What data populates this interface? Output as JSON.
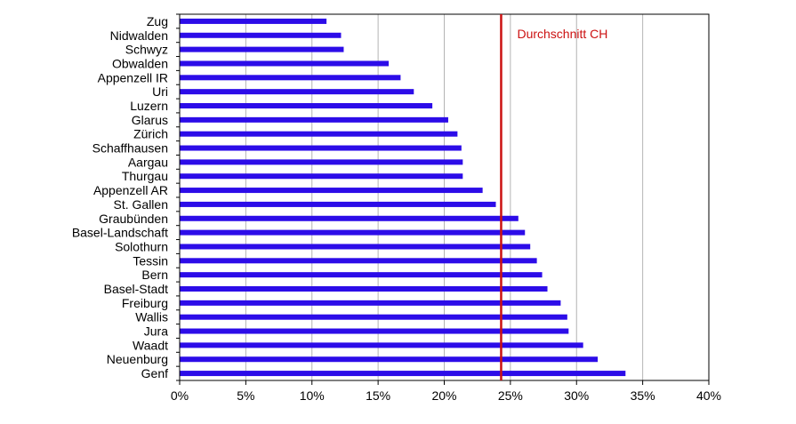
{
  "chart_data": {
    "type": "bar",
    "orientation": "horizontal",
    "categories": [
      "Zug",
      "Nidwalden",
      "Schwyz",
      "Obwalden",
      "Appenzell IR",
      "Uri",
      "Luzern",
      "Glarus",
      "Zürich",
      "Schaffhausen",
      "Aargau",
      "Thurgau",
      "Appenzell AR",
      "St. Gallen",
      "Graubünden",
      "Basel-Landschaft",
      "Solothurn",
      "Tessin",
      "Bern",
      "Basel-Stadt",
      "Freiburg",
      "Wallis",
      "Jura",
      "Waadt",
      "Neuenburg",
      "Genf"
    ],
    "values": [
      11.1,
      12.2,
      12.4,
      15.8,
      16.7,
      17.7,
      19.1,
      20.3,
      21.0,
      21.3,
      21.4,
      21.4,
      22.9,
      23.9,
      25.6,
      26.1,
      26.5,
      27.0,
      27.4,
      27.8,
      28.8,
      29.3,
      29.4,
      30.5,
      31.6,
      33.7
    ],
    "xlim": [
      0,
      40
    ],
    "xticks": [
      "0%",
      "5%",
      "10%",
      "15%",
      "20%",
      "25%",
      "30%",
      "35%",
      "40%"
    ],
    "grid": "vertical",
    "reference_line": {
      "value": 24.3,
      "label": "Durchschnitt CH"
    },
    "colors": {
      "bar": "#2c0ce8",
      "reference": "#cc1111",
      "grid": "#b4b4b4"
    }
  }
}
